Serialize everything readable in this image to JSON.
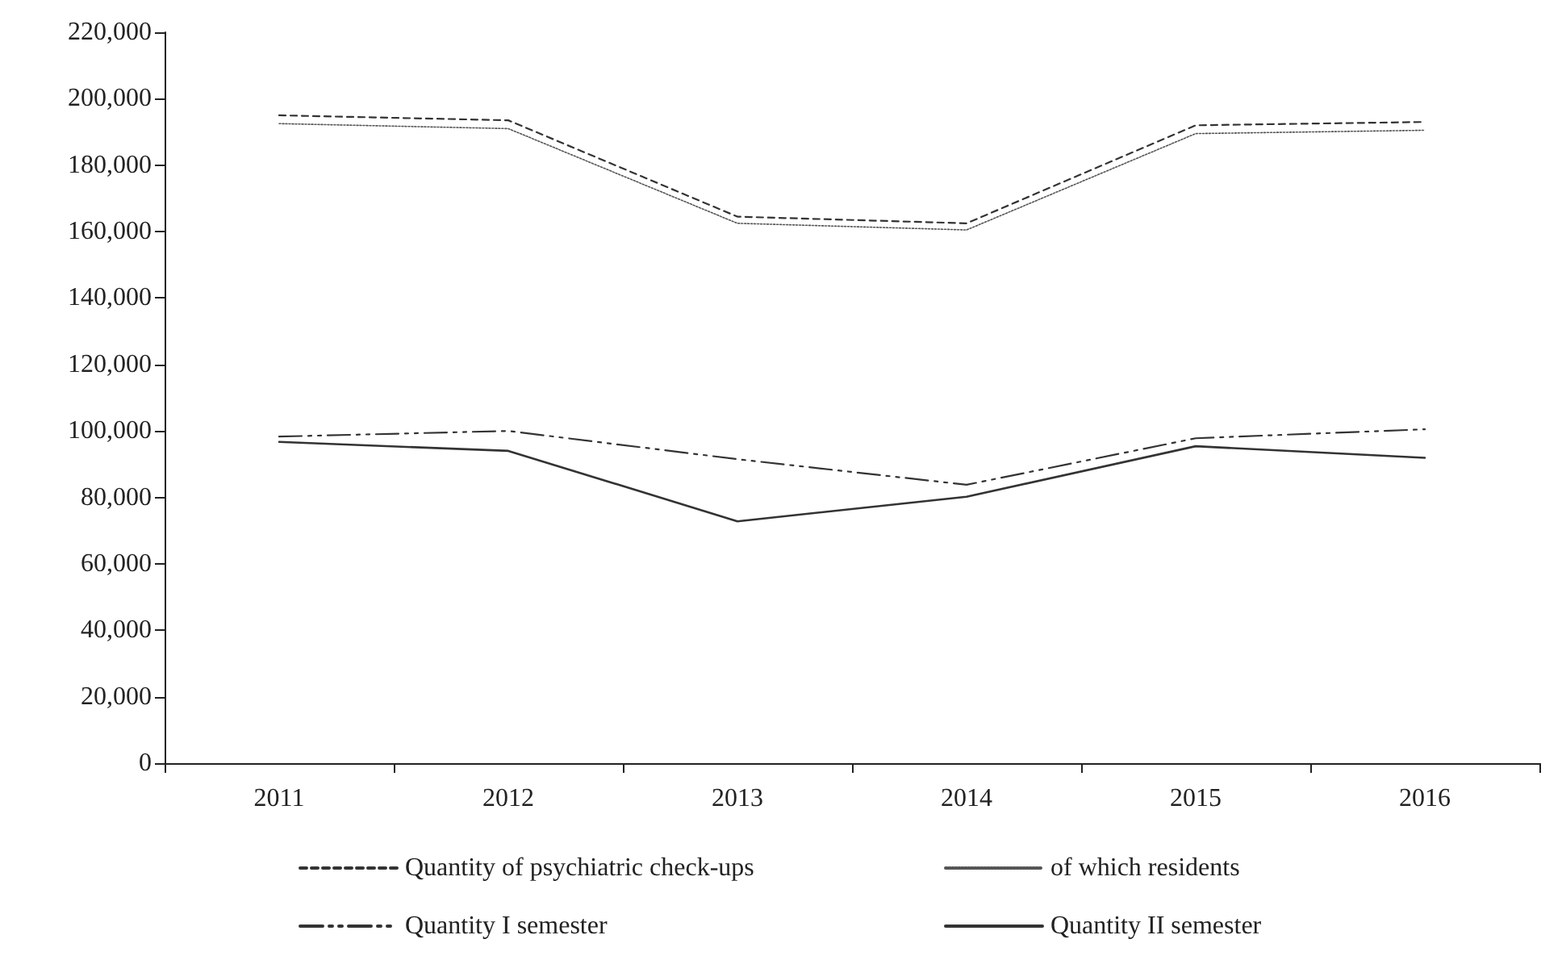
{
  "chart_data": {
    "type": "line",
    "categories": [
      "2011",
      "2012",
      "2013",
      "2014",
      "2015",
      "2016"
    ],
    "series": [
      {
        "name": "Quantity of psychiatric check-ups",
        "color": "#333333",
        "line_style": "dashed",
        "values": [
          195000,
          193500,
          164500,
          162500,
          192000,
          193000
        ]
      },
      {
        "name": "of which residents",
        "color": "#555555",
        "line_style": "dotted",
        "values": [
          192500,
          191000,
          162500,
          160500,
          189500,
          190500
        ]
      },
      {
        "name": "Quantity I semester",
        "color": "#333333",
        "line_style": "dashdot",
        "values": [
          98300,
          100000,
          91500,
          83800,
          97800,
          100500
        ]
      },
      {
        "name": "Quantity II semester",
        "color": "#333333",
        "line_style": "solid",
        "values": [
          96700,
          94000,
          72800,
          80200,
          95400,
          91900
        ]
      }
    ],
    "ylim": [
      0,
      220000
    ],
    "yticks": [
      0,
      {
        "value": 20000,
        "label": "20,000"
      },
      {
        "value": 40000,
        "label": "40,000"
      },
      {
        "value": 60000,
        "label": "60,000"
      },
      {
        "value": 80000,
        "label": "80,000"
      },
      {
        "value": 100000,
        "label": "100,000"
      },
      {
        "value": 120000,
        "label": "120,000"
      },
      {
        "value": 140000,
        "label": "140,000"
      },
      {
        "value": 160000,
        "label": "160,000"
      },
      {
        "value": 180000,
        "label": "180,000"
      },
      {
        "value": 200000,
        "label": "200,000"
      },
      {
        "value": 220000,
        "label": "220,000"
      }
    ],
    "grid": false,
    "legend": "bottom",
    "marker": "none"
  }
}
